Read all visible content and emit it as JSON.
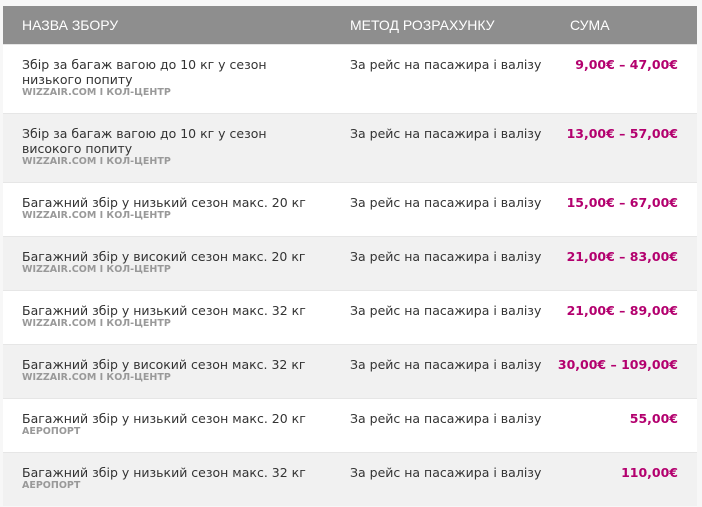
{
  "header": {
    "name": "НАЗВА ЗБОРУ",
    "method": "МЕТОД РОЗРАХУНКУ",
    "amount": "СУМА"
  },
  "accent_color": "#b3006e",
  "rows": [
    {
      "name": "Збір за багаж вагою до 10 кг у сезон низького попиту",
      "source": "WIZZAIR.COM І КОЛ-ЦЕНТР",
      "method": "За рейс на пасажира і валізу",
      "price": "9,00€ – 47,00€"
    },
    {
      "name": "Збір за багаж вагою до 10 кг у сезон високого попиту",
      "source": "WIZZAIR.COM І КОЛ-ЦЕНТР",
      "method": "За рейс на пасажира і валізу",
      "price": "13,00€ – 57,00€"
    },
    {
      "name": "Багажний збір у низький сезон макс. 20 кг",
      "source": "WIZZAIR.COM І КОЛ-ЦЕНТР",
      "method": "За рейс на пасажира і валізу",
      "price": "15,00€ – 67,00€"
    },
    {
      "name": "Багажний збір у високий сезон макс. 20 кг",
      "source": "WIZZAIR.COM І КОЛ-ЦЕНТР",
      "method": "За рейс на пасажира і валізу",
      "price": "21,00€ – 83,00€"
    },
    {
      "name": "Багажний збір у низький сезон макс. 32 кг",
      "source": "WIZZAIR.COM І КОЛ-ЦЕНТР",
      "method": "За рейс на пасажира і валізу",
      "price": "21,00€ – 89,00€"
    },
    {
      "name": "Багажний збір у високий сезон макс. 32 кг",
      "source": "WIZZAIR.COM І КОЛ-ЦЕНТР",
      "method": "За рейс на пасажира і валізу",
      "price": "30,00€ – 109,00€"
    },
    {
      "name": "Багажний збір у низький сезон макс. 20 кг",
      "source": "АЕРОПОРТ",
      "method": "За рейс на пасажира і валізу",
      "price": "55,00€"
    },
    {
      "name": "Багажний збір у низький сезон макс. 32 кг",
      "source": "АЕРОПОРТ",
      "method": "За рейс на пасажира і валізу",
      "price": "110,00€"
    }
  ]
}
